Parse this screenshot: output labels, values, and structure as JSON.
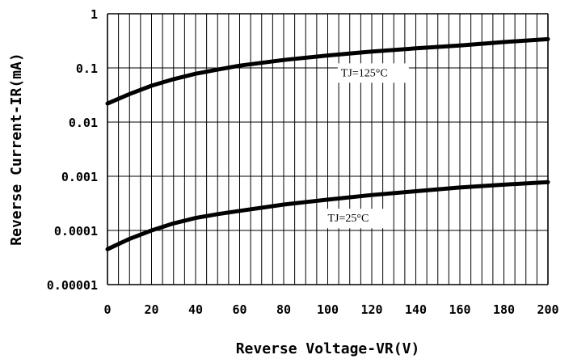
{
  "chart_data": {
    "type": "line",
    "title": "",
    "xlabel": "Reverse Voltage-VR(V)",
    "ylabel": "Reverse Current-IR(mA)",
    "xlim": [
      0,
      200
    ],
    "ylim": [
      1e-05,
      1
    ],
    "y_scale": "log",
    "grid": true,
    "x_ticks": [
      "0",
      "20",
      "40",
      "60",
      "80",
      "100",
      "120",
      "140",
      "160",
      "180",
      "200"
    ],
    "y_ticks": [
      "1",
      "0.1",
      "0.01",
      "0.001",
      "0.0001",
      "0.00001"
    ],
    "series": [
      {
        "name": "TJ=125°C",
        "x": [
          0,
          10,
          20,
          30,
          40,
          50,
          60,
          80,
          100,
          120,
          140,
          160,
          180,
          200
        ],
        "y": [
          0.022,
          0.033,
          0.047,
          0.062,
          0.078,
          0.093,
          0.11,
          0.14,
          0.17,
          0.2,
          0.23,
          0.26,
          0.3,
          0.34
        ]
      },
      {
        "name": "TJ=25°C",
        "x": [
          0,
          10,
          20,
          30,
          40,
          50,
          60,
          80,
          100,
          120,
          140,
          160,
          180,
          200
        ],
        "y": [
          4.5e-05,
          7e-05,
          0.0001,
          0.000135,
          0.00017,
          0.0002,
          0.00023,
          0.0003,
          0.00037,
          0.00045,
          0.00053,
          0.00062,
          0.0007,
          0.00078
        ]
      }
    ]
  },
  "colors": {
    "background": "#ffffff",
    "grid": "#000000",
    "curve": "#000000"
  }
}
